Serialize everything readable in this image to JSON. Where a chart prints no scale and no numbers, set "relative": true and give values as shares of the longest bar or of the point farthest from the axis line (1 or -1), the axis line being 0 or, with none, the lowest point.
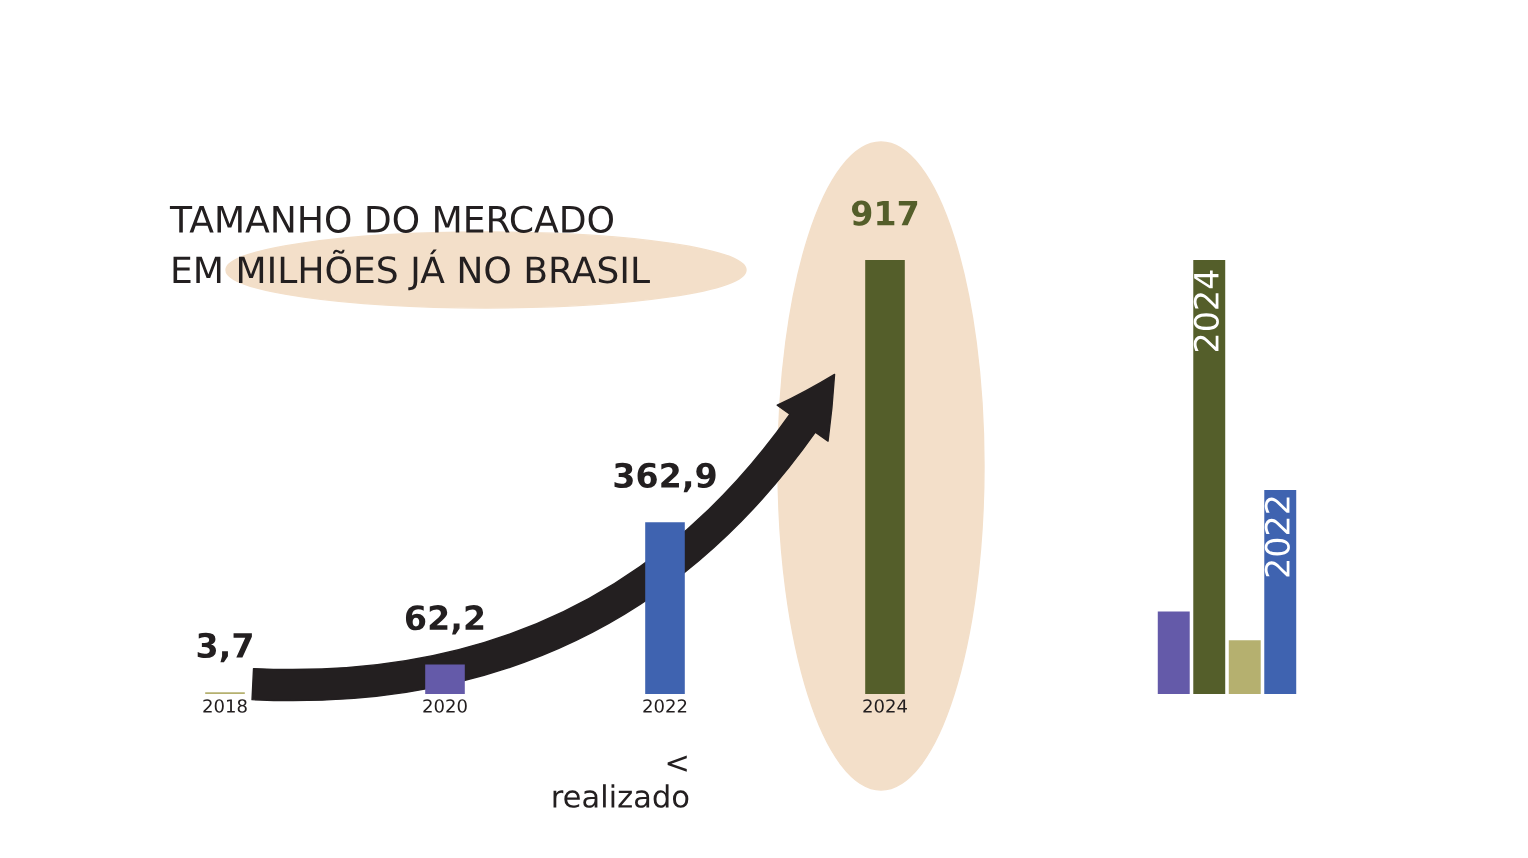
{
  "chart_data": [
    {
      "type": "bar",
      "title": "TAMANHO DO MERCADO\nEM MILHÕES JÁ NO BRASIL",
      "categories": [
        "2018",
        "2020",
        "2022",
        "2024"
      ],
      "values": [
        3.7,
        62.2,
        362.9,
        917
      ],
      "colors": [
        "#b5b06f",
        "#645aa9",
        "#3f63b0",
        "#545e2a"
      ],
      "value_labels": [
        "3,7",
        "62,2",
        "362,9",
        "917"
      ],
      "tick_labels": "x",
      "annotations": [
        "<\nrealizado"
      ]
    },
    {
      "type": "bar",
      "relative": true,
      "categories": [
        null,
        null,
        null,
        null
      ],
      "values": [
        0.19,
        1,
        0.124,
        0.47
      ],
      "annotations": [
        {
          "text": "2024",
          "y": 1
        },
        {
          "text": "2022",
          "y": 0.47
        }
      ],
      "colors": [
        "#645aa9",
        "#545e2a",
        "#b5b06f",
        "#3f63b0"
      ],
      "tick_labels": false
    }
  ]
}
